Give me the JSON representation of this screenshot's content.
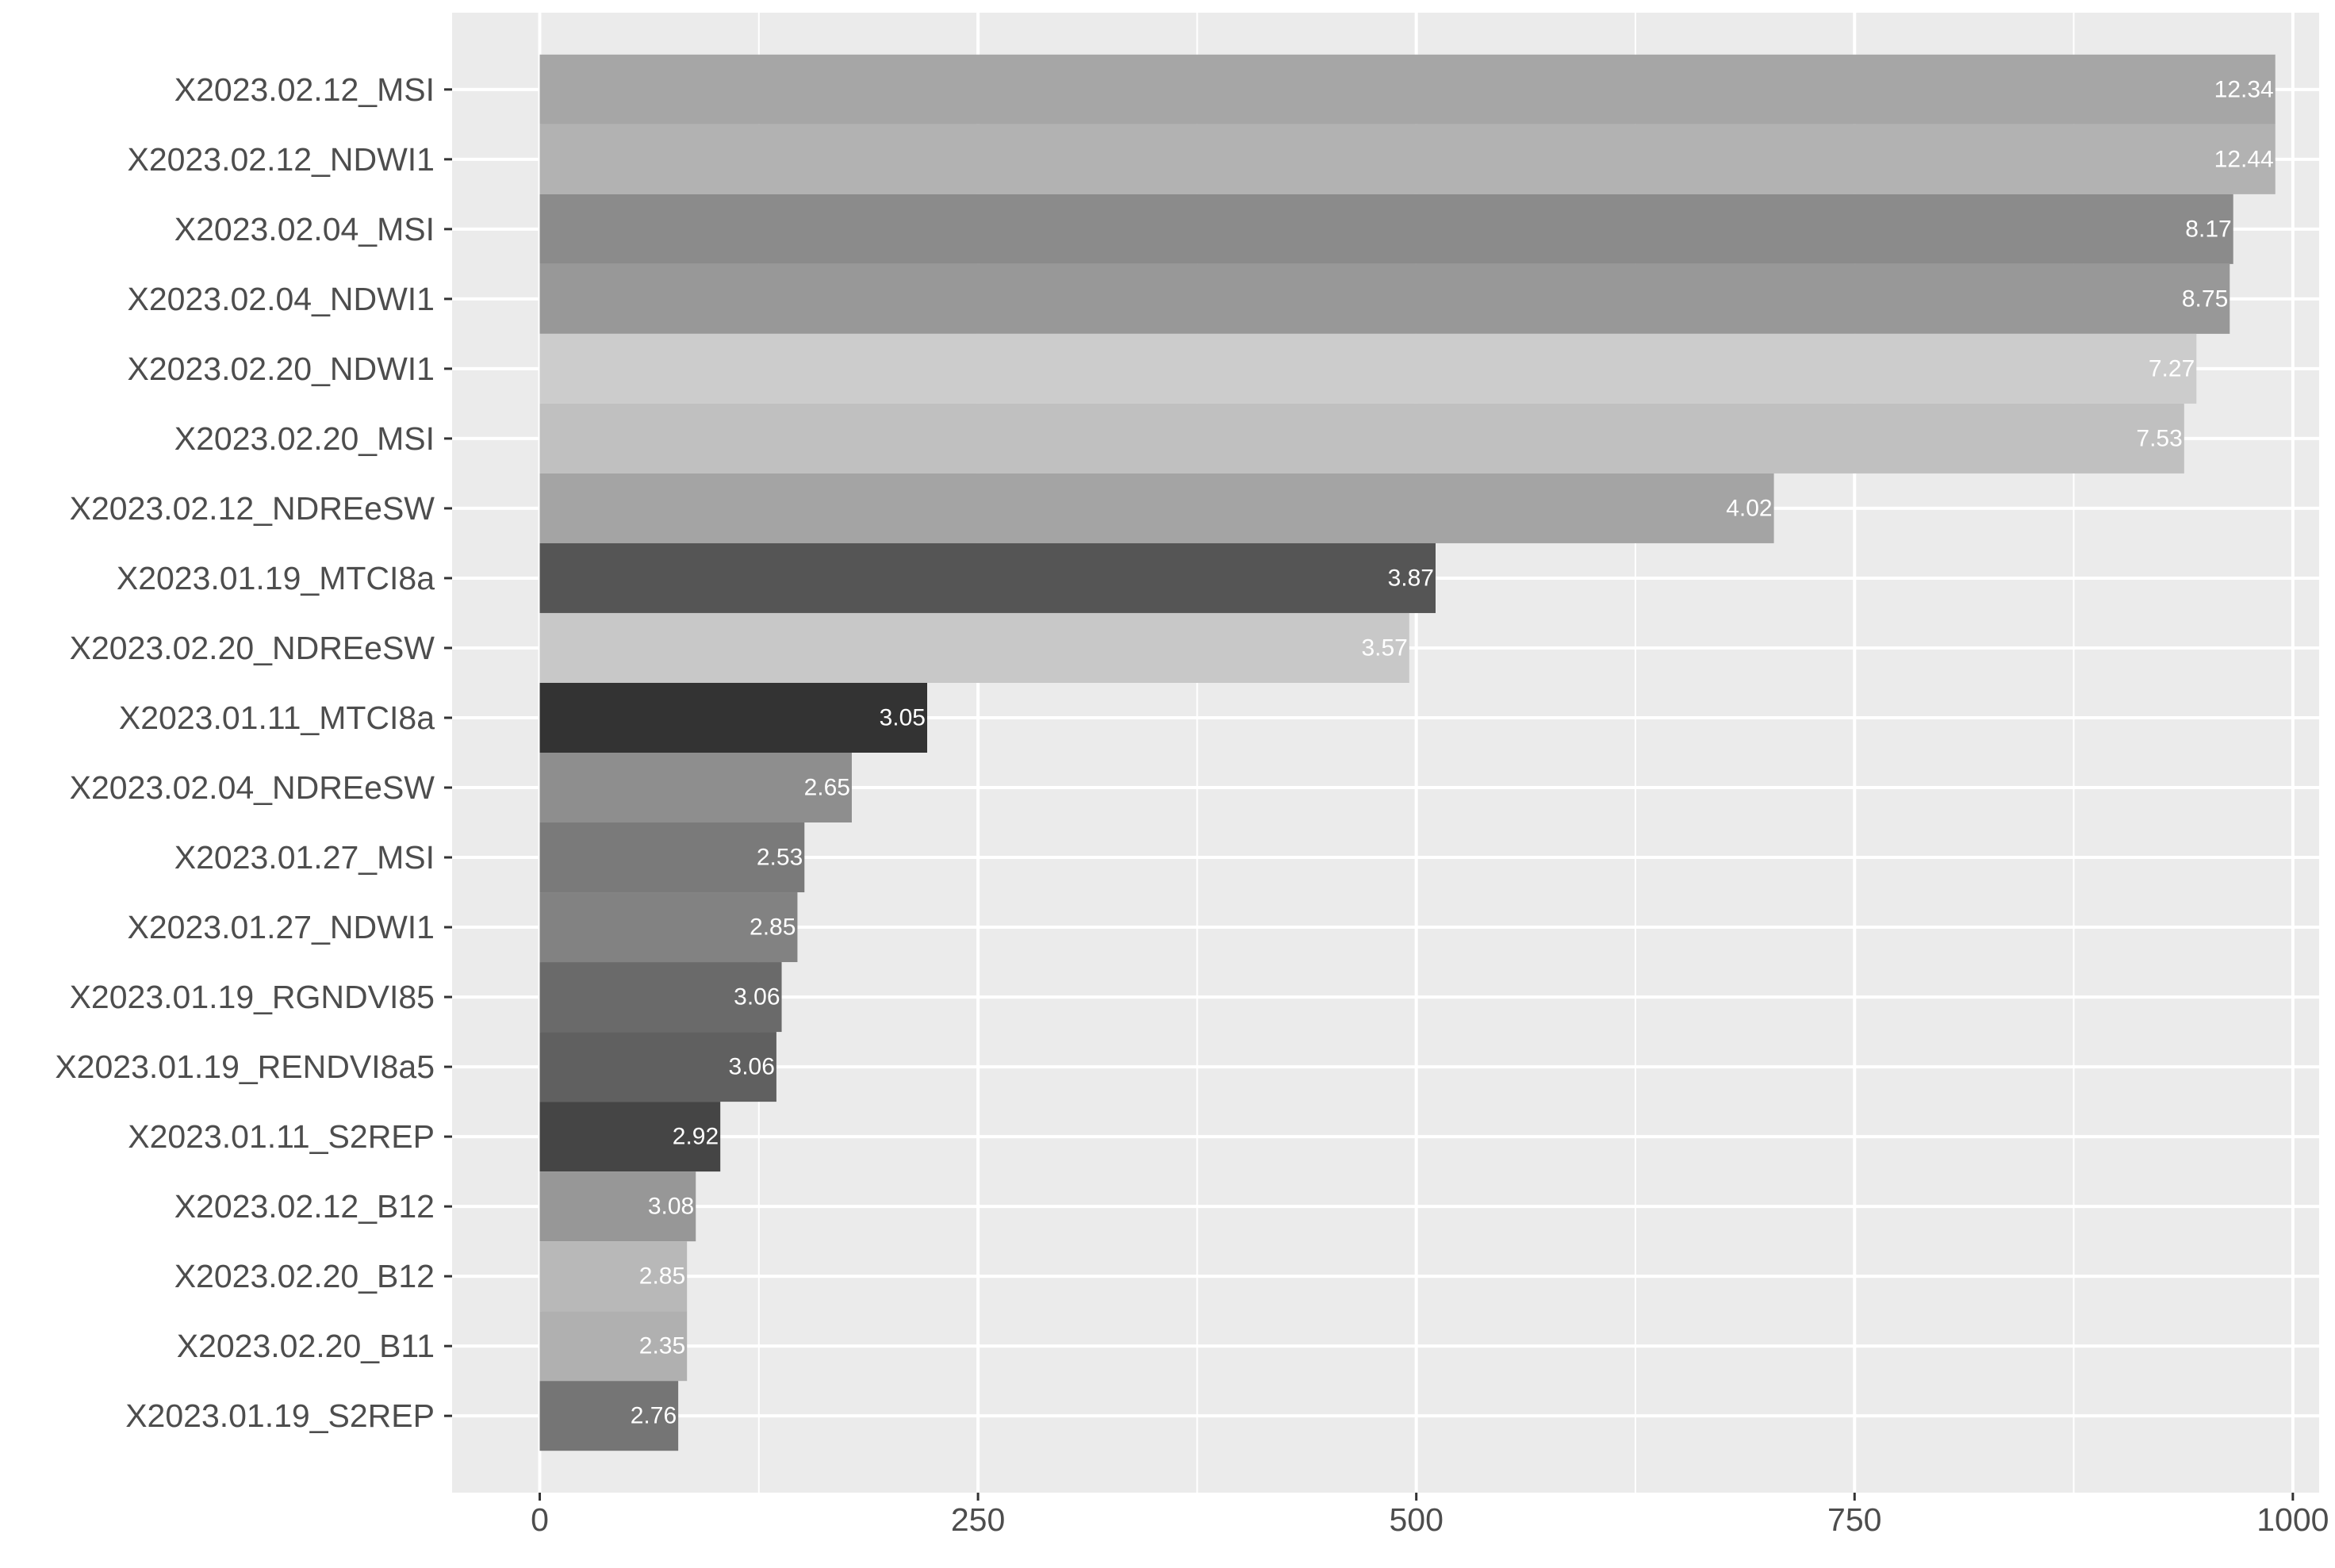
{
  "chart_data": {
    "type": "bar",
    "orientation": "horizontal",
    "title": "",
    "xlabel": "",
    "ylabel": "",
    "xlim": [
      -50,
      1015
    ],
    "x_ticks": [
      0,
      250,
      500,
      750,
      1000
    ],
    "x_tick_labels": [
      "0",
      "250",
      "500",
      "750",
      "1000"
    ],
    "grid": true,
    "legend": "none",
    "categories": [
      "X2023.02.12_MSI",
      "X2023.02.12_NDWI1",
      "X2023.02.04_MSI",
      "X2023.02.04_NDWI1",
      "X2023.02.20_NDWI1",
      "X2023.02.20_MSI",
      "X2023.02.12_NDREeSW",
      "X2023.01.19_MTCI8a",
      "X2023.02.20_NDREeSW",
      "X2023.01.11_MTCI8a",
      "X2023.02.04_NDREeSW",
      "X2023.01.27_MSI",
      "X2023.01.27_NDWI1",
      "X2023.01.19_RGNDVI85",
      "X2023.01.19_RENDVI8a5",
      "X2023.01.11_S2REP",
      "X2023.02.12_B12",
      "X2023.02.20_B12",
      "X2023.02.20_B11",
      "X2023.01.19_S2REP"
    ],
    "values": [
      990,
      990,
      966,
      964,
      945,
      938,
      704,
      511,
      496,
      221,
      178,
      151,
      147,
      138,
      135,
      103,
      89,
      84,
      84,
      79
    ],
    "labels": [
      "12.34",
      "12.44",
      "8.17",
      "8.75",
      "7.27",
      "7.53",
      "4.02",
      "3.87",
      "3.57",
      "3.05",
      "2.65",
      "2.53",
      "2.85",
      "3.06",
      "3.06",
      "2.92",
      "3.08",
      "2.85",
      "2.35",
      "2.76"
    ],
    "colors": [
      "#a6a6a6",
      "#b2b2b2",
      "#8b8b8b",
      "#989898",
      "#cccccc",
      "#c0c0c0",
      "#a4a4a4",
      "#555555",
      "#c8c8c8",
      "#333333",
      "#8e8e8e",
      "#7a7a7a",
      "#828282",
      "#6a6a6a",
      "#606060",
      "#454545",
      "#979797",
      "#b8b8b8",
      "#b0b0b0",
      "#757575"
    ]
  }
}
